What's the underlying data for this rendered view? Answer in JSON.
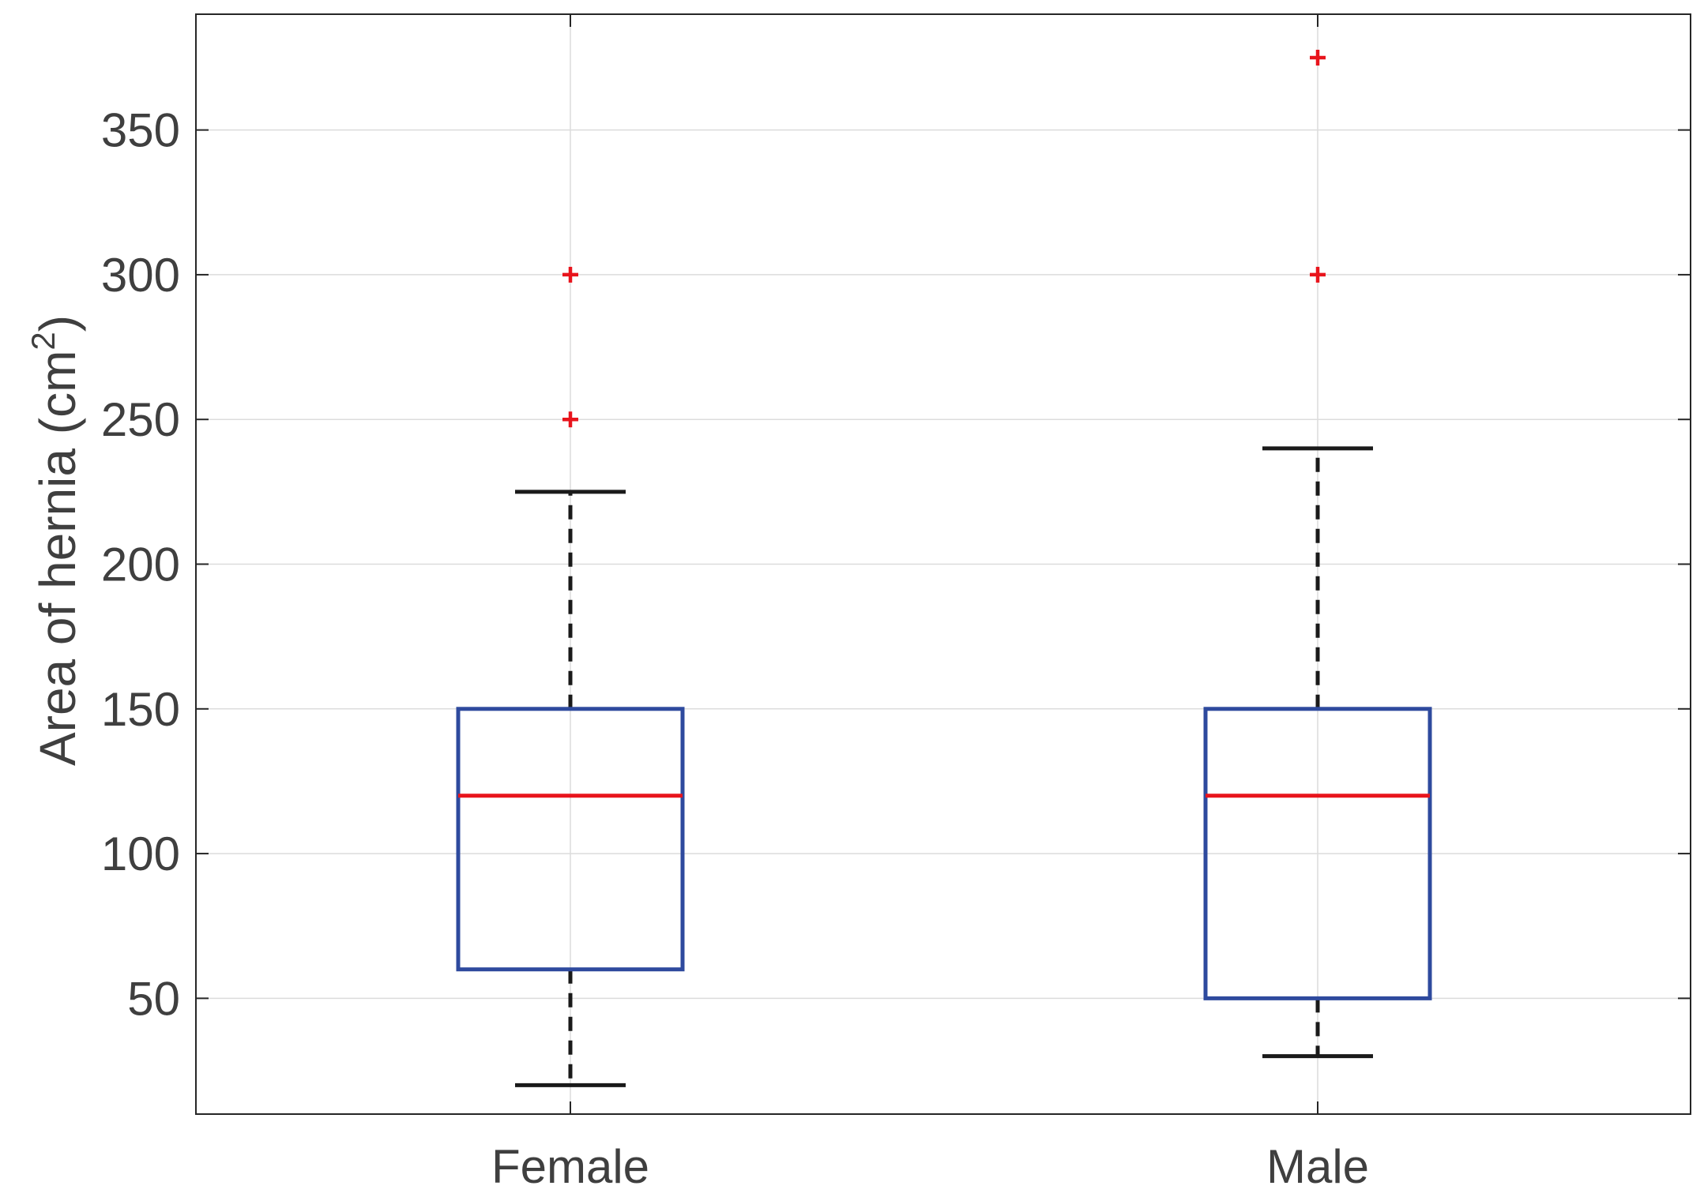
{
  "chart_data": {
    "type": "boxplot",
    "title": "",
    "xlabel": "",
    "ylabel": "Area of hernia (cm",
    "ylabel_superscript": "2",
    "ylabel_close": ")",
    "ylim": [
      10,
      390
    ],
    "yticks": [
      50,
      100,
      150,
      200,
      250,
      300,
      350
    ],
    "grid": true,
    "categories": [
      "Female",
      "Male"
    ],
    "boxes": [
      {
        "name": "Female",
        "whisker_low": 20,
        "q1": 60,
        "median": 120,
        "q3": 150,
        "whisker_high": 225,
        "outliers": [
          250,
          300
        ]
      },
      {
        "name": "Male",
        "whisker_low": 30,
        "q1": 50,
        "median": 120,
        "q3": 150,
        "whisker_high": 240,
        "outliers": [
          300,
          375
        ]
      }
    ],
    "colors": {
      "box": "#2e4a9e",
      "median": "#e8141c",
      "whisker": "#1a1a1a",
      "outlier": "#e8141c",
      "grid": "#dcdcdc",
      "axis": "#262626",
      "text": "#3f3f3f"
    }
  }
}
